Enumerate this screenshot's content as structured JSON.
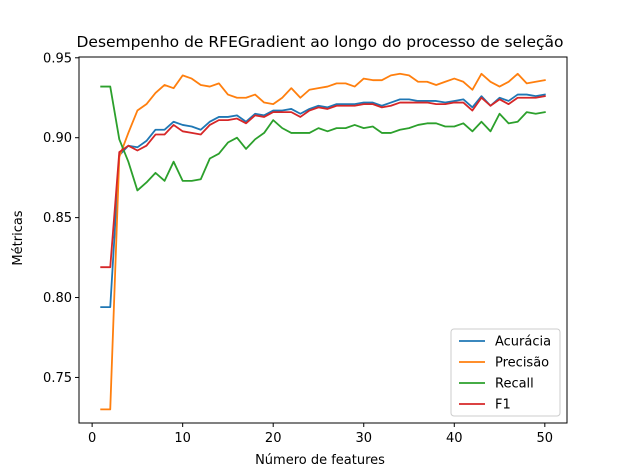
{
  "chart_data": {
    "type": "line",
    "title": "Desempenho de RFEGradient ao longo do processo de seleção",
    "xlabel": "Número de features",
    "ylabel": "Métricas",
    "xlim": [
      -1.45,
      52.45
    ],
    "ylim": [
      0.7215,
      0.9505
    ],
    "xticks": [
      0,
      10,
      20,
      30,
      40,
      50
    ],
    "yticks": [
      0.75,
      0.8,
      0.85,
      0.9,
      0.95
    ],
    "ytick_labels": [
      "0.75",
      "0.80",
      "0.85",
      "0.90",
      "0.95"
    ],
    "grid": false,
    "legend_position": "lower-right",
    "x": [
      1,
      2,
      3,
      4,
      5,
      6,
      7,
      8,
      9,
      10,
      11,
      12,
      13,
      14,
      15,
      16,
      17,
      18,
      19,
      20,
      21,
      22,
      23,
      24,
      25,
      26,
      27,
      28,
      29,
      30,
      31,
      32,
      33,
      34,
      35,
      36,
      37,
      38,
      39,
      40,
      41,
      42,
      43,
      44,
      45,
      46,
      47,
      48,
      49,
      50
    ],
    "series": [
      {
        "name": "Acurácia",
        "color": "#1f77b4",
        "values": [
          0.794,
          0.794,
          0.889,
          0.895,
          0.894,
          0.898,
          0.905,
          0.905,
          0.91,
          0.908,
          0.907,
          0.905,
          0.91,
          0.913,
          0.913,
          0.914,
          0.91,
          0.915,
          0.914,
          0.917,
          0.917,
          0.918,
          0.915,
          0.918,
          0.92,
          0.919,
          0.921,
          0.921,
          0.921,
          0.922,
          0.922,
          0.92,
          0.922,
          0.924,
          0.924,
          0.923,
          0.923,
          0.923,
          0.922,
          0.923,
          0.924,
          0.919,
          0.926,
          0.92,
          0.925,
          0.923,
          0.927,
          0.927,
          0.926,
          0.927
        ]
      },
      {
        "name": "Precisão",
        "color": "#ff7f0e",
        "values": [
          0.73,
          0.73,
          0.888,
          0.903,
          0.917,
          0.921,
          0.928,
          0.933,
          0.931,
          0.939,
          0.937,
          0.933,
          0.932,
          0.934,
          0.927,
          0.925,
          0.925,
          0.927,
          0.922,
          0.921,
          0.925,
          0.931,
          0.925,
          0.93,
          0.931,
          0.932,
          0.934,
          0.934,
          0.932,
          0.937,
          0.936,
          0.936,
          0.939,
          0.94,
          0.939,
          0.935,
          0.935,
          0.933,
          0.935,
          0.937,
          0.935,
          0.93,
          0.94,
          0.935,
          0.932,
          0.935,
          0.94,
          0.934,
          0.935,
          0.936
        ]
      },
      {
        "name": "Recall",
        "color": "#2ca02c",
        "values": [
          0.932,
          0.932,
          0.899,
          0.885,
          0.867,
          0.872,
          0.878,
          0.873,
          0.885,
          0.873,
          0.873,
          0.874,
          0.887,
          0.89,
          0.897,
          0.9,
          0.893,
          0.899,
          0.903,
          0.911,
          0.906,
          0.903,
          0.903,
          0.903,
          0.906,
          0.904,
          0.906,
          0.906,
          0.908,
          0.906,
          0.907,
          0.903,
          0.903,
          0.905,
          0.906,
          0.908,
          0.909,
          0.909,
          0.907,
          0.907,
          0.909,
          0.904,
          0.91,
          0.904,
          0.915,
          0.909,
          0.91,
          0.916,
          0.915,
          0.916
        ]
      },
      {
        "name": "F1",
        "color": "#d62728",
        "values": [
          0.819,
          0.819,
          0.891,
          0.895,
          0.892,
          0.895,
          0.902,
          0.902,
          0.908,
          0.904,
          0.903,
          0.902,
          0.908,
          0.911,
          0.911,
          0.912,
          0.909,
          0.914,
          0.913,
          0.916,
          0.916,
          0.916,
          0.913,
          0.917,
          0.919,
          0.918,
          0.92,
          0.92,
          0.92,
          0.921,
          0.921,
          0.919,
          0.92,
          0.922,
          0.922,
          0.922,
          0.922,
          0.921,
          0.921,
          0.922,
          0.922,
          0.917,
          0.925,
          0.92,
          0.924,
          0.921,
          0.925,
          0.925,
          0.925,
          0.926
        ]
      }
    ]
  }
}
